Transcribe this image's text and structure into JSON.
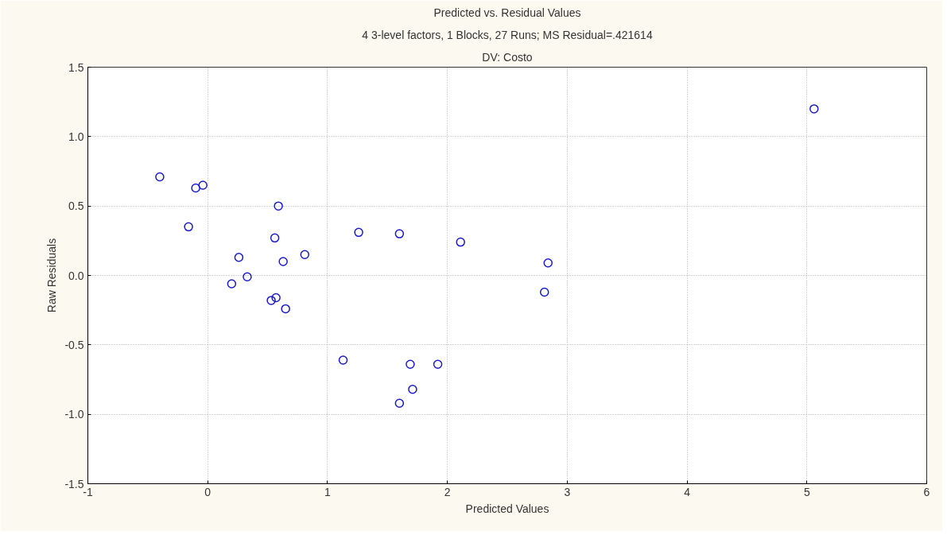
{
  "chart_data": {
    "type": "scatter",
    "title": "Predicted vs. Residual Values",
    "subtitle": "4 3-level factors, 1 Blocks, 27 Runs; MS Residual=.421614",
    "annotations": [
      "DV: Costo"
    ],
    "xlabel": "Predicted Values",
    "ylabel": "Raw Residuals",
    "x": [
      -0.4,
      -0.1,
      -0.04,
      -0.16,
      0.59,
      0.56,
      0.26,
      0.63,
      0.81,
      0.33,
      0.2,
      0.57,
      0.53,
      0.65,
      1.26,
      1.6,
      1.13,
      1.69,
      1.71,
      1.6,
      1.92,
      2.11,
      2.84,
      2.81,
      5.06
    ],
    "series": [
      {
        "color": "#1a1acc",
        "values": [
          0.71,
          0.63,
          0.65,
          0.35,
          0.5,
          0.27,
          0.13,
          0.1,
          0.15,
          -0.01,
          -0.06,
          -0.16,
          -0.18,
          -0.24,
          0.31,
          0.3,
          -0.61,
          -0.64,
          -0.82,
          -0.92,
          -0.64,
          0.24,
          0.09,
          -0.12,
          1.2
        ]
      }
    ],
    "xlim": [
      -1,
      6
    ],
    "ylim": [
      -1.5,
      1.5
    ],
    "xticks": [
      -1,
      0,
      1,
      2,
      3,
      4,
      5,
      6
    ],
    "yticks": [
      {
        "value": -1.5,
        "label": "-1.5"
      },
      {
        "value": -1.0,
        "label": "-1.0"
      },
      {
        "value": -0.5,
        "label": "-0.5"
      },
      {
        "value": 0,
        "label": "0.0"
      },
      {
        "value": 0.5,
        "label": "0.5"
      },
      {
        "value": 1.0,
        "label": "1.0"
      },
      {
        "value": 1.5,
        "label": "1.5"
      }
    ],
    "grid": true,
    "marker": "circle"
  }
}
